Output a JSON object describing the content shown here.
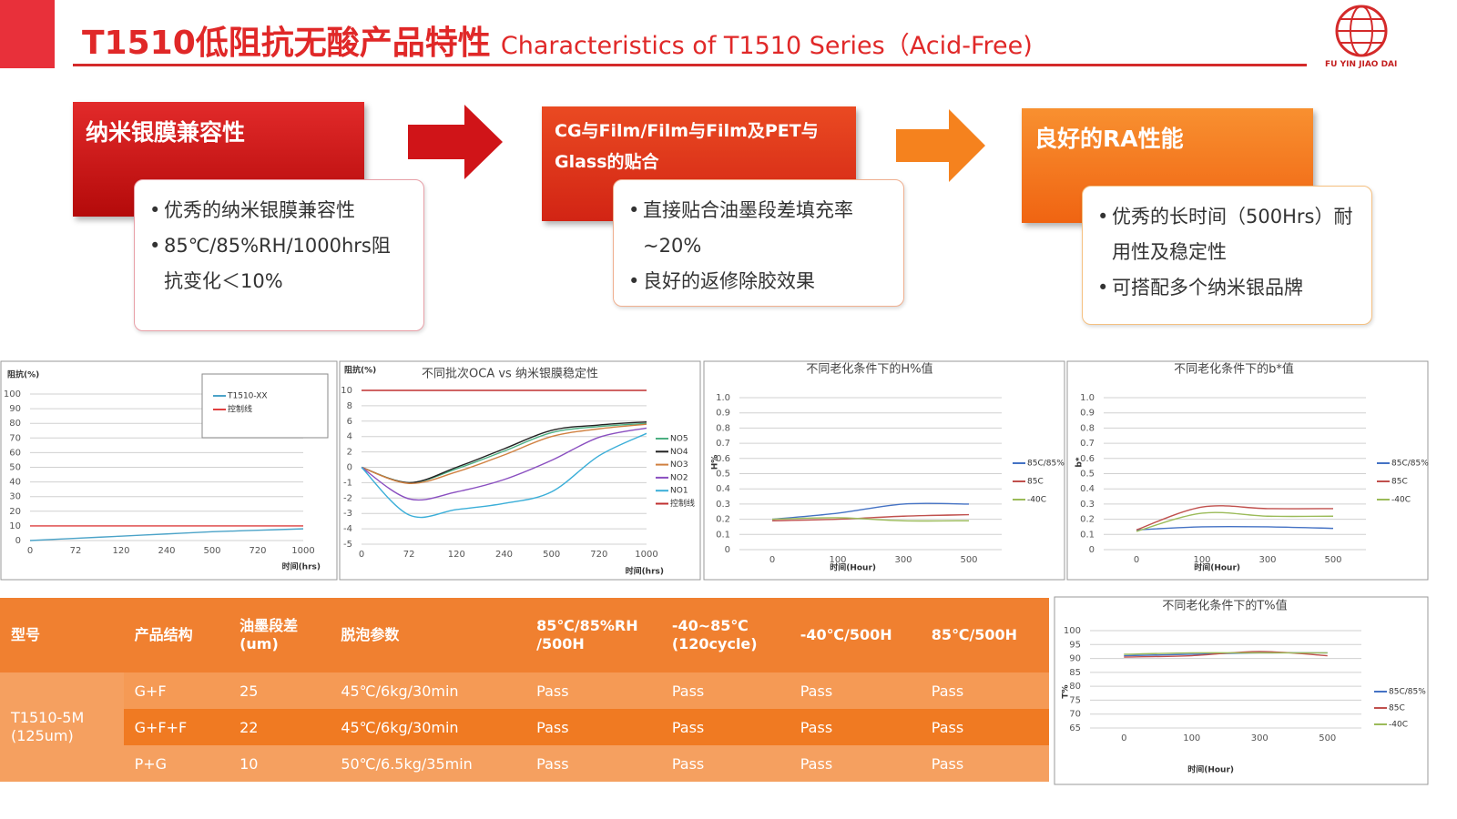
{
  "header": {
    "title_cn": "T1510低阻抗无酸产品特性",
    "title_en": "Characteristics of T1510 Series（Acid-Free)",
    "logo_text": "FU YIN JIAO DAI"
  },
  "features": [
    {
      "title": "纳米银膜兼容性",
      "bullets": [
        "优秀的纳米银膜兼容性",
        "85℃/85%RH/1000hrs阻抗变化＜10%"
      ]
    },
    {
      "title": "CG与Film/Film与Film及PET与Glass的贴合",
      "bullets": [
        "直接贴合油墨段差填充率~20%",
        "良好的返修除胶效果"
      ]
    },
    {
      "title": "良好的RA性能",
      "bullets": [
        "优秀的长时间（500Hrs）耐用性及稳定性",
        "可搭配多个纳米银品牌"
      ]
    }
  ],
  "chart_data": [
    {
      "type": "line",
      "y_label": "阻抗(%)",
      "x_label": "时间(hrs)",
      "categories": [
        "0",
        "72",
        "120",
        "240",
        "500",
        "720",
        "1000"
      ],
      "ylim": [
        0,
        100
      ],
      "yticks": [
        0,
        10,
        20,
        30,
        40,
        50,
        60,
        70,
        80,
        90,
        100
      ],
      "grid": true,
      "legend": "top-right",
      "series": [
        {
          "name": "T1510-XX",
          "color": "#4ba3c8",
          "values": [
            0,
            1.5,
            3,
            4.5,
            6,
            7,
            8
          ]
        },
        {
          "name": "控制线",
          "color": "#e04040",
          "values": [
            10,
            10,
            10,
            10,
            10,
            10,
            10
          ]
        }
      ]
    },
    {
      "type": "line",
      "title": "不同批次OCA vs 纳米银膜稳定性",
      "y_label": "阻抗(%)",
      "x_label": "时间(hrs)",
      "categories": [
        "0",
        "72",
        "120",
        "240",
        "500",
        "720",
        "1000"
      ],
      "ylim": [
        -10,
        10
      ],
      "yticks": [
        {
          "value": -10,
          "label": "-5"
        },
        {
          "value": -8,
          "label": "-4"
        },
        {
          "value": -6,
          "label": "-3"
        },
        {
          "value": -4,
          "label": "-2"
        },
        {
          "value": -2,
          "label": "-1"
        },
        0,
        2,
        4,
        6,
        8,
        10
      ],
      "grid": true,
      "legend": "right",
      "series": [
        {
          "name": "NO5",
          "color": "#4caf82",
          "values": [
            0,
            -2.0,
            -0.2,
            2.1,
            4.5,
            5.3,
            5.7
          ]
        },
        {
          "name": "NO4",
          "color": "#222222",
          "values": [
            0,
            -2.0,
            0,
            2.4,
            4.8,
            5.5,
            5.9
          ]
        },
        {
          "name": "NO3",
          "color": "#d08040",
          "values": [
            0,
            -2.1,
            -0.6,
            1.6,
            4.0,
            5.0,
            5.6
          ]
        },
        {
          "name": "NO2",
          "color": "#8a4fc0",
          "values": [
            0,
            -4.1,
            -3.2,
            -1.6,
            0.9,
            3.9,
            5.1
          ]
        },
        {
          "name": "NO1",
          "color": "#3aaed8",
          "values": [
            0,
            -6.2,
            -5.5,
            -4.7,
            -3.2,
            1.5,
            4.4
          ]
        },
        {
          "name": "控制线",
          "color": "#c03030",
          "values": [
            10,
            10,
            10,
            10,
            10,
            10,
            10
          ]
        }
      ]
    },
    {
      "type": "line",
      "title": "不同老化条件下的H%值",
      "y_label": "H%",
      "x_label": "时间(Hour)",
      "categories": [
        "0",
        "100",
        "300",
        "500"
      ],
      "ylim": [
        0,
        1
      ],
      "yticks": [
        0,
        0.1,
        0.2,
        0.3,
        0.4,
        0.5,
        0.6,
        0.7,
        0.8,
        0.9,
        {
          "value": 1,
          "label": "1.0"
        }
      ],
      "grid": true,
      "legend": "right",
      "series": [
        {
          "name": "85C/85%",
          "color": "#4472c4",
          "values": [
            0.2,
            0.24,
            0.3,
            0.3
          ]
        },
        {
          "name": "85C",
          "color": "#c0504d",
          "values": [
            0.19,
            0.2,
            0.22,
            0.23
          ]
        },
        {
          "name": "-40C",
          "color": "#9bbb59",
          "values": [
            0.2,
            0.21,
            0.19,
            0.19
          ]
        }
      ]
    },
    {
      "type": "line",
      "title": "不同老化条件下的b*值",
      "y_label": "b*",
      "x_label": "时间(Hour)",
      "categories": [
        "0",
        "100",
        "300",
        "500"
      ],
      "ylim": [
        0,
        1
      ],
      "yticks": [
        0,
        0.1,
        0.2,
        0.3,
        0.4,
        0.5,
        0.6,
        0.7,
        0.8,
        0.9,
        {
          "value": 1,
          "label": "1.0"
        }
      ],
      "grid": true,
      "legend": "right",
      "series": [
        {
          "name": "85C/85%",
          "color": "#4472c4",
          "values": [
            0.13,
            0.15,
            0.15,
            0.14
          ]
        },
        {
          "name": "85C",
          "color": "#c0504d",
          "values": [
            0.13,
            0.28,
            0.27,
            0.27
          ]
        },
        {
          "name": "-40C",
          "color": "#9bbb59",
          "values": [
            0.12,
            0.24,
            0.22,
            0.22
          ]
        }
      ]
    },
    {
      "type": "line",
      "title": "不同老化条件下的T%值",
      "y_label": "T%",
      "x_label": "时间(Hour)",
      "categories": [
        "0",
        "100",
        "300",
        "500"
      ],
      "ylim": [
        65,
        100
      ],
      "yticks": [
        65,
        70,
        75,
        80,
        85,
        90,
        95,
        100
      ],
      "grid": true,
      "legend": "right",
      "series": [
        {
          "name": "85C/85%",
          "color": "#4472c4",
          "values": [
            91,
            91.5,
            92,
            92
          ]
        },
        {
          "name": "85C",
          "color": "#c0504d",
          "values": [
            90.5,
            91,
            92.5,
            91
          ]
        },
        {
          "name": "-40C",
          "color": "#9bbb59",
          "values": [
            91.5,
            92,
            92,
            92
          ]
        }
      ]
    }
  ],
  "table": {
    "header": [
      "型号",
      "产品结构",
      "油墨段差\n(um)",
      "脱泡参数",
      "85℃/85%RH\n/500H",
      "-40~85℃\n(120cycle)",
      "-40℃/500H",
      "85℃/500H"
    ],
    "model": "T1510-5M\n(125um)",
    "rows": [
      [
        "G+F",
        "25",
        "45℃/6kg/30min",
        "Pass",
        "Pass",
        "Pass",
        "Pass"
      ],
      [
        "G+F+F",
        "22",
        "45℃/6kg/30min",
        "Pass",
        "Pass",
        "Pass",
        "Pass"
      ],
      [
        "P+G",
        "10",
        "50℃/6.5kg/35min",
        "Pass",
        "Pass",
        "Pass",
        "Pass"
      ]
    ]
  }
}
